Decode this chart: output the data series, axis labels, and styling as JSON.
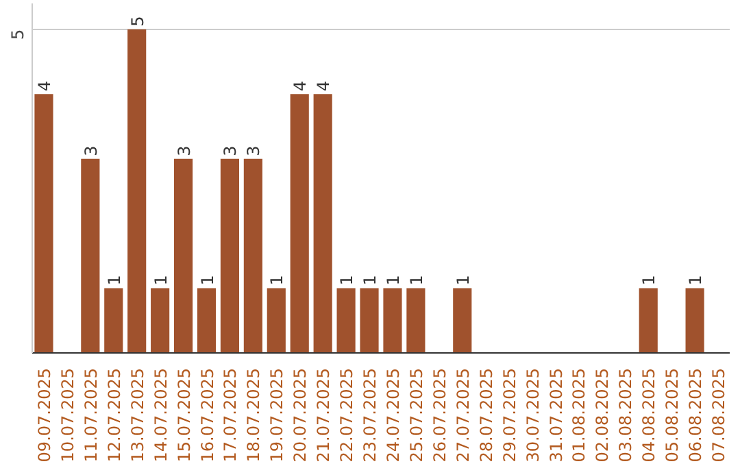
{
  "chart_data": {
    "type": "bar",
    "categories": [
      "09.07.2025",
      "10.07.2025",
      "11.07.2025",
      "12.07.2025",
      "13.07.2025",
      "14.07.2025",
      "15.07.2025",
      "16.07.2025",
      "17.07.2025",
      "18.07.2025",
      "19.07.2025",
      "20.07.2025",
      "21.07.2025",
      "22.07.2025",
      "23.07.2025",
      "24.07.2025",
      "25.07.2025",
      "26.07.2025",
      "27.07.2025",
      "28.07.2025",
      "29.07.2025",
      "30.07.2025",
      "31.07.2025",
      "01.08.2025",
      "02.08.2025",
      "03.08.2025",
      "04.08.2025",
      "05.08.2025",
      "06.08.2025",
      "07.08.2025"
    ],
    "values": [
      4,
      0,
      3,
      1,
      5,
      1,
      3,
      1,
      3,
      3,
      1,
      4,
      4,
      1,
      1,
      1,
      1,
      0,
      1,
      0,
      0,
      0,
      0,
      0,
      0,
      0,
      1,
      0,
      1,
      0
    ],
    "value_labels": [
      "4",
      null,
      "3",
      "1",
      "5",
      "1",
      "3",
      "1",
      "3",
      "3",
      "1",
      "4",
      "4",
      "1",
      "1",
      "1",
      "1",
      null,
      "1",
      null,
      null,
      null,
      null,
      null,
      null,
      null,
      "1",
      null,
      "1",
      null
    ],
    "color": "#a0522d",
    "ylim": [
      0,
      5.4
    ],
    "yticks": [
      5
    ],
    "grid": "y"
  }
}
